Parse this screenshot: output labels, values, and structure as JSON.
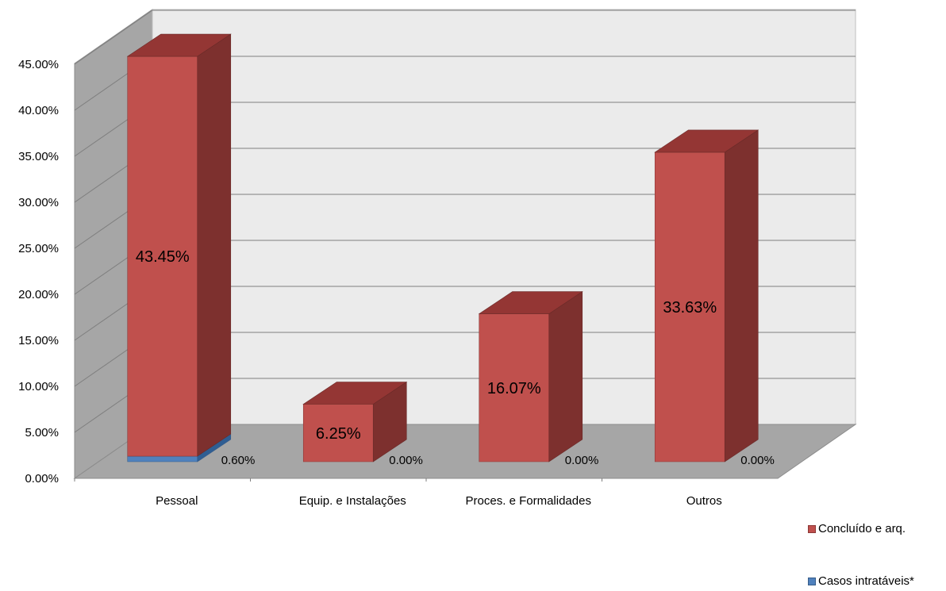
{
  "chart_data": {
    "type": "bar",
    "stacked": true,
    "three_d": true,
    "categories": [
      "Pessoal",
      "Equip. e Instalações",
      "Proces. e Formalidades",
      "Outros"
    ],
    "series": [
      {
        "name": "Concluído e arq.",
        "color": "#c0504d",
        "values": [
          43.45,
          6.25,
          16.07,
          33.63
        ],
        "labels": [
          "43.45%",
          "6.25%",
          "16.07%",
          "33.63%"
        ]
      },
      {
        "name": "Casos  intratáveis*",
        "color": "#4f81bd",
        "values": [
          0.6,
          0.0,
          0.0,
          0.0
        ],
        "labels": [
          "0.60%",
          "0.00%",
          "0.00%",
          "0.00%"
        ]
      }
    ],
    "y_ticks": [
      "0.00%",
      "5.00%",
      "10.00%",
      "15.00%",
      "20.00%",
      "25.00%",
      "30.00%",
      "35.00%",
      "40.00%",
      "45.00%"
    ],
    "ylim": [
      0,
      45
    ],
    "grid": true,
    "legend_position": "right-bottom"
  }
}
